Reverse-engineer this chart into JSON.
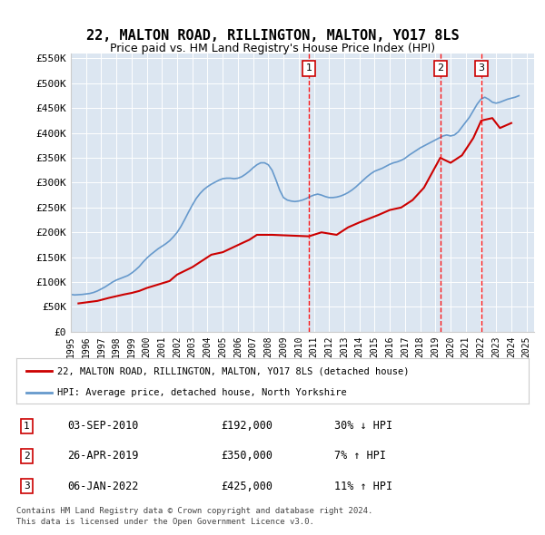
{
  "title": "22, MALTON ROAD, RILLINGTON, MALTON, YO17 8LS",
  "subtitle": "Price paid vs. HM Land Registry's House Price Index (HPI)",
  "ylabel": "",
  "background_color": "#dce6f1",
  "plot_bg_color": "#dce6f1",
  "fig_bg_color": "#ffffff",
  "ylim": [
    0,
    560000
  ],
  "yticks": [
    0,
    50000,
    100000,
    150000,
    200000,
    250000,
    300000,
    350000,
    400000,
    450000,
    500000,
    550000
  ],
  "ytick_labels": [
    "£0",
    "£50K",
    "£100K",
    "£150K",
    "£200K",
    "£250K",
    "£300K",
    "£350K",
    "£400K",
    "£450K",
    "£500K",
    "£550K"
  ],
  "xlim_start": 1995.0,
  "xlim_end": 2025.5,
  "hpi_color": "#6699cc",
  "price_color": "#cc0000",
  "dashed_color": "#ff0000",
  "transactions": [
    {
      "num": 1,
      "date": "03-SEP-2010",
      "price": 192000,
      "pct": "30%",
      "dir": "↓",
      "x": 2010.67
    },
    {
      "num": 2,
      "date": "26-APR-2019",
      "price": 350000,
      "pct": "7%",
      "dir": "↑",
      "x": 2019.32
    },
    {
      "num": 3,
      "date": "06-JAN-2022",
      "price": 425000,
      "pct": "11%",
      "dir": "↑",
      "x": 2022.02
    }
  ],
  "legend_property": "22, MALTON ROAD, RILLINGTON, MALTON, YO17 8LS (detached house)",
  "legend_hpi": "HPI: Average price, detached house, North Yorkshire",
  "footer1": "Contains HM Land Registry data © Crown copyright and database right 2024.",
  "footer2": "This data is licensed under the Open Government Licence v3.0.",
  "hpi_data_x": [
    1995.0,
    1995.25,
    1995.5,
    1995.75,
    1996.0,
    1996.25,
    1996.5,
    1996.75,
    1997.0,
    1997.25,
    1997.5,
    1997.75,
    1998.0,
    1998.25,
    1998.5,
    1998.75,
    1999.0,
    1999.25,
    1999.5,
    1999.75,
    2000.0,
    2000.25,
    2000.5,
    2000.75,
    2001.0,
    2001.25,
    2001.5,
    2001.75,
    2002.0,
    2002.25,
    2002.5,
    2002.75,
    2003.0,
    2003.25,
    2003.5,
    2003.75,
    2004.0,
    2004.25,
    2004.5,
    2004.75,
    2005.0,
    2005.25,
    2005.5,
    2005.75,
    2006.0,
    2006.25,
    2006.5,
    2006.75,
    2007.0,
    2007.25,
    2007.5,
    2007.75,
    2008.0,
    2008.25,
    2008.5,
    2008.75,
    2009.0,
    2009.25,
    2009.5,
    2009.75,
    2010.0,
    2010.25,
    2010.5,
    2010.75,
    2011.0,
    2011.25,
    2011.5,
    2011.75,
    2012.0,
    2012.25,
    2012.5,
    2012.75,
    2013.0,
    2013.25,
    2013.5,
    2013.75,
    2014.0,
    2014.25,
    2014.5,
    2014.75,
    2015.0,
    2015.25,
    2015.5,
    2015.75,
    2016.0,
    2016.25,
    2016.5,
    2016.75,
    2017.0,
    2017.25,
    2017.5,
    2017.75,
    2018.0,
    2018.25,
    2018.5,
    2018.75,
    2019.0,
    2019.25,
    2019.5,
    2019.75,
    2020.0,
    2020.25,
    2020.5,
    2020.75,
    2021.0,
    2021.25,
    2021.5,
    2021.75,
    2022.0,
    2022.25,
    2022.5,
    2022.75,
    2023.0,
    2023.25,
    2023.5,
    2023.75,
    2024.0,
    2024.25,
    2024.5
  ],
  "hpi_data_y": [
    75000,
    74000,
    74500,
    75000,
    76000,
    77000,
    79000,
    82000,
    86000,
    90000,
    95000,
    100000,
    104000,
    107000,
    110000,
    113000,
    118000,
    124000,
    131000,
    140000,
    148000,
    155000,
    161000,
    167000,
    172000,
    177000,
    183000,
    191000,
    200000,
    212000,
    226000,
    241000,
    255000,
    268000,
    278000,
    286000,
    292000,
    297000,
    301000,
    305000,
    308000,
    309000,
    309000,
    308000,
    309000,
    312000,
    317000,
    323000,
    330000,
    336000,
    340000,
    340000,
    336000,
    325000,
    306000,
    285000,
    270000,
    265000,
    263000,
    262000,
    263000,
    265000,
    268000,
    272000,
    275000,
    277000,
    275000,
    272000,
    270000,
    270000,
    271000,
    273000,
    276000,
    280000,
    285000,
    291000,
    298000,
    305000,
    312000,
    318000,
    323000,
    326000,
    329000,
    333000,
    337000,
    340000,
    342000,
    345000,
    349000,
    355000,
    360000,
    365000,
    370000,
    374000,
    378000,
    382000,
    386000,
    390000,
    394000,
    396000,
    394000,
    396000,
    402000,
    412000,
    422000,
    432000,
    445000,
    458000,
    468000,
    472000,
    468000,
    462000,
    460000,
    462000,
    465000,
    468000,
    470000,
    472000,
    475000
  ],
  "price_data_x": [
    1995.5,
    1996.25,
    1996.75,
    1997.5,
    1998.5,
    1999.0,
    1999.5,
    2000.0,
    2000.75,
    2001.5,
    2002.0,
    2003.0,
    2004.25,
    2005.0,
    2006.25,
    2006.75,
    2007.25,
    2008.25,
    2010.67,
    2011.5,
    2012.5,
    2013.25,
    2014.0,
    2015.25,
    2016.0,
    2016.75,
    2017.5,
    2018.25,
    2019.32,
    2020.0,
    2020.75,
    2021.5,
    2022.02,
    2022.75,
    2023.25,
    2024.0
  ],
  "price_data_y": [
    57000,
    60000,
    62000,
    68000,
    75000,
    78000,
    82000,
    88000,
    95000,
    102000,
    115000,
    130000,
    155000,
    160000,
    178000,
    185000,
    195000,
    195000,
    192000,
    200000,
    195000,
    210000,
    220000,
    235000,
    245000,
    250000,
    265000,
    290000,
    350000,
    340000,
    355000,
    390000,
    425000,
    430000,
    410000,
    420000
  ]
}
